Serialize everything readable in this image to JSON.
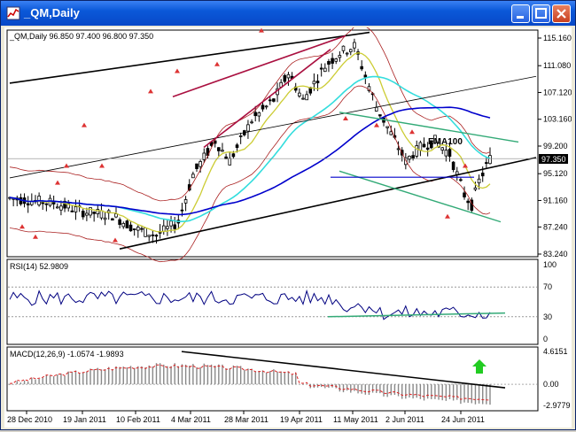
{
  "window": {
    "title": "_QM,Daily",
    "minimize_icon": "minimize-icon",
    "maximize_icon": "maximize-icon",
    "close_icon": "close-icon"
  },
  "chart_data": [
    {
      "type": "candlestick",
      "panel": "price",
      "title": "_QM,Daily",
      "ohlc_label": "96.850 97.400 96.800 97.350",
      "y_ticks": [
        "115.160",
        "111.080",
        "107.120",
        "103.160",
        "99.200",
        "95.120",
        "91.160",
        "87.240",
        "83.240"
      ],
      "ylim": [
        83.24,
        115.16
      ],
      "current_price_label": "97.350",
      "current_price": 97.35,
      "annotations": [
        "EMA100"
      ],
      "colors": {
        "candle": "#000000",
        "ema100": "#0000cc",
        "bands": "#aa2020",
        "cyan_ma": "#33dddd",
        "yellow_ma": "#cccc33",
        "green_ma": "#33aa33",
        "trendline": "#000000",
        "red_channel": "#aa1040",
        "green_channel": "#33aa77",
        "fractals": "#dd3333"
      }
    },
    {
      "type": "line",
      "panel": "rsi",
      "label": "RSI(14) 52.9809",
      "y_ticks": [
        "100",
        "70",
        "30",
        "0"
      ],
      "ylim": [
        0,
        100
      ],
      "levels": [
        70,
        30
      ],
      "colors": {
        "line": "#000080",
        "trendline": "#33aa77"
      }
    },
    {
      "type": "bar",
      "panel": "macd",
      "label": "MACD(12,26,9) -1.0574 -1.9893",
      "y_ticks": [
        "4.6151",
        "0.00",
        "-2.9779"
      ],
      "ylim": [
        -2.9779,
        4.6151
      ],
      "colors": {
        "histogram": "#888888",
        "signal": "#dd2222",
        "trendline": "#000000",
        "arrow": "#22cc22"
      }
    }
  ],
  "x_ticks": [
    "28 Dec 2010",
    "19 Jan 2011",
    "10 Feb 2011",
    "4 Mar 2011",
    "28 Mar 2011",
    "19 Apr 2011",
    "11 May 2011",
    "2 Jun 2011",
    "24 Jun 2011"
  ]
}
